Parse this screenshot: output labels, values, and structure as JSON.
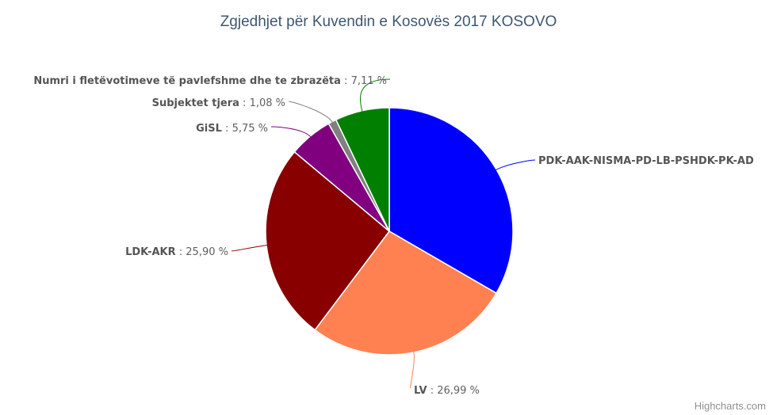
{
  "chart_data": {
    "type": "pie",
    "title": "Zgjedhjet për Kuvendin e Kosovës 2017 KOSOVO",
    "slices": [
      {
        "name": "PDK-AAK-NISMA-PD-LB-PSHDK-PK-AD",
        "value": 33.45,
        "value_label": "",
        "color": "#0000ff"
      },
      {
        "name": "LV",
        "value": 26.99,
        "value_label": "26,99 %",
        "color": "#ff8152"
      },
      {
        "name": "LDK-AKR",
        "value": 25.9,
        "value_label": "25,90 %",
        "color": "#880000"
      },
      {
        "name": "GiSL",
        "value": 5.75,
        "value_label": "5,75 %",
        "color": "#800080"
      },
      {
        "name": "Subjektet tjera",
        "value": 1.08,
        "value_label": "1,08 %",
        "color": "#808080"
      },
      {
        "name": "Numri i fletëvotimeve të pavlefshme dhe te zbrazëta",
        "value": 7.11,
        "value_label": "7,11 %",
        "color": "#007f00"
      }
    ],
    "label_separator": " : "
  },
  "credits": "Highcharts.com"
}
